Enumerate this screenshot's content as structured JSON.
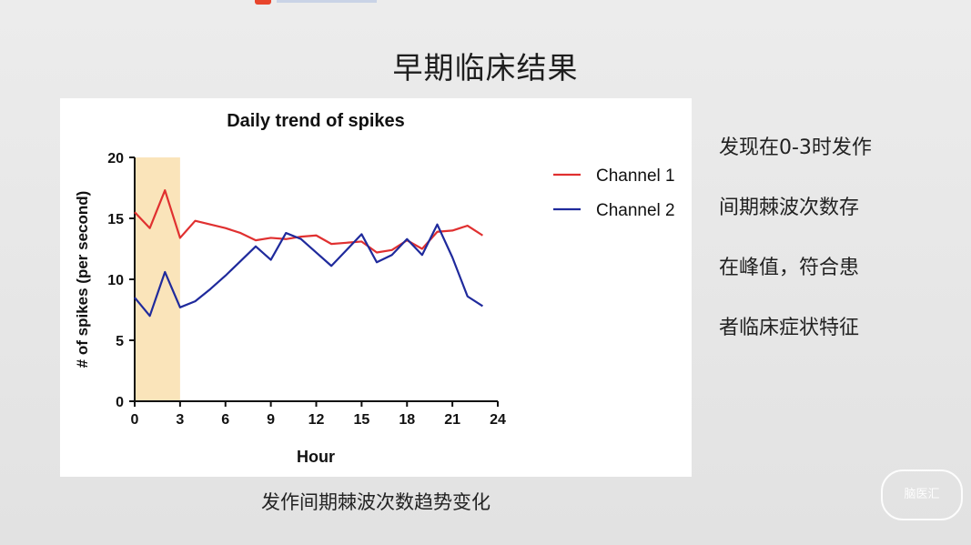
{
  "slide": {
    "title": "早期临床结果",
    "caption": "发作间期棘波次数趋势变化",
    "side_lines": [
      "发现在0-3时发作",
      "间期棘波次数存",
      "在峰值，符合患",
      "者临床症状特征"
    ],
    "watermark": "脑医汇"
  },
  "chart_data": {
    "type": "line",
    "title": "Daily trend of spikes",
    "xlabel": "Hour",
    "ylabel": "# of spikes (per second)",
    "xlim": [
      0,
      24
    ],
    "ylim": [
      0,
      20
    ],
    "xticks": [
      0,
      3,
      6,
      9,
      12,
      15,
      18,
      21,
      24
    ],
    "yticks": [
      0,
      5,
      10,
      15,
      20
    ],
    "highlight_band": {
      "x_start": 0,
      "x_end": 3,
      "color": "#fae4ba"
    },
    "legend_position": "right",
    "x": [
      0,
      1,
      2,
      3,
      4,
      5,
      6,
      7,
      8,
      9,
      10,
      11,
      12,
      13,
      14,
      15,
      16,
      17,
      18,
      19,
      20,
      21,
      22,
      23
    ],
    "series": [
      {
        "name": "Channel 1",
        "color": "#e03030",
        "values": [
          15.5,
          14.2,
          17.3,
          13.4,
          14.8,
          14.5,
          14.2,
          13.8,
          13.2,
          13.4,
          13.3,
          13.5,
          13.6,
          12.9,
          13.0,
          13.1,
          12.2,
          12.4,
          13.2,
          12.5,
          13.9,
          14.0,
          14.4,
          13.6
        ]
      },
      {
        "name": "Channel 2",
        "color": "#1f2a9c",
        "values": [
          8.5,
          7.0,
          10.6,
          7.7,
          8.2,
          9.2,
          10.3,
          11.5,
          12.7,
          11.6,
          13.8,
          13.3,
          12.2,
          11.1,
          12.4,
          13.7,
          11.4,
          12.0,
          13.3,
          12.0,
          14.5,
          11.8,
          8.6,
          7.8
        ]
      }
    ]
  }
}
